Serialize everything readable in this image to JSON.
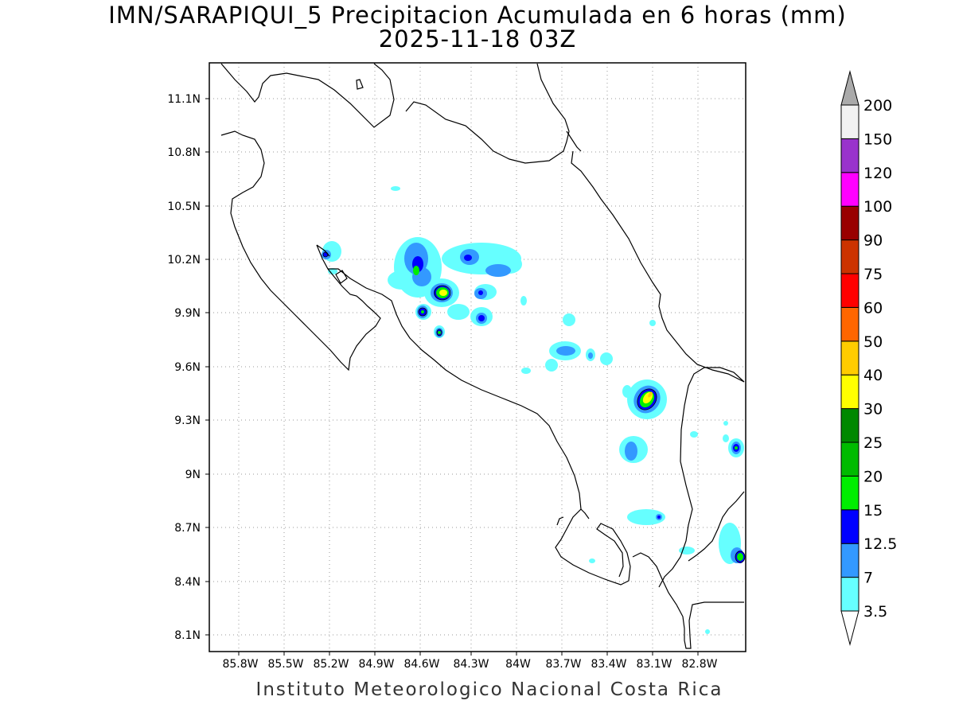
{
  "title": {
    "line1": "IMN/SARAPIQUI_5 Precipitacion Acumulada en 6 horas (mm)",
    "line2": "2025-11-18 03Z"
  },
  "footer": "Instituto Meteorologico Nacional Costa Rica",
  "map": {
    "lat_ticks": [
      "11.1N",
      "10.8N",
      "10.5N",
      "10.2N",
      "9.9N",
      "9.6N",
      "9.3N",
      "9N",
      "8.7N",
      "8.4N",
      "8.1N"
    ],
    "lon_ticks": [
      "85.8W",
      "85.5W",
      "85.2W",
      "84.9W",
      "84.6W",
      "84.3W",
      "84W",
      "83.7W",
      "83.4W",
      "83.1W",
      "82.8W"
    ],
    "grid": "dotted",
    "contour_levels_mm": [
      3.5,
      7,
      12.5,
      15,
      20,
      25,
      30,
      40,
      50
    ]
  },
  "colorbar": {
    "labels": [
      "3.5",
      "7",
      "12.5",
      "15",
      "20",
      "25",
      "30",
      "40",
      "50",
      "60",
      "75",
      "90",
      "100",
      "120",
      "150",
      "200"
    ],
    "colors": [
      "#66ffff",
      "#3399ff",
      "#0000ff",
      "#00ee00",
      "#00bb00",
      "#008800",
      "#ffff00",
      "#ffcc00",
      "#ff6600",
      "#ff0000",
      "#cc3300",
      "#990000",
      "#ff00ff",
      "#9933cc",
      "#f2f2f2",
      "#aaaaaa"
    ],
    "below_color": "#ffffff"
  }
}
